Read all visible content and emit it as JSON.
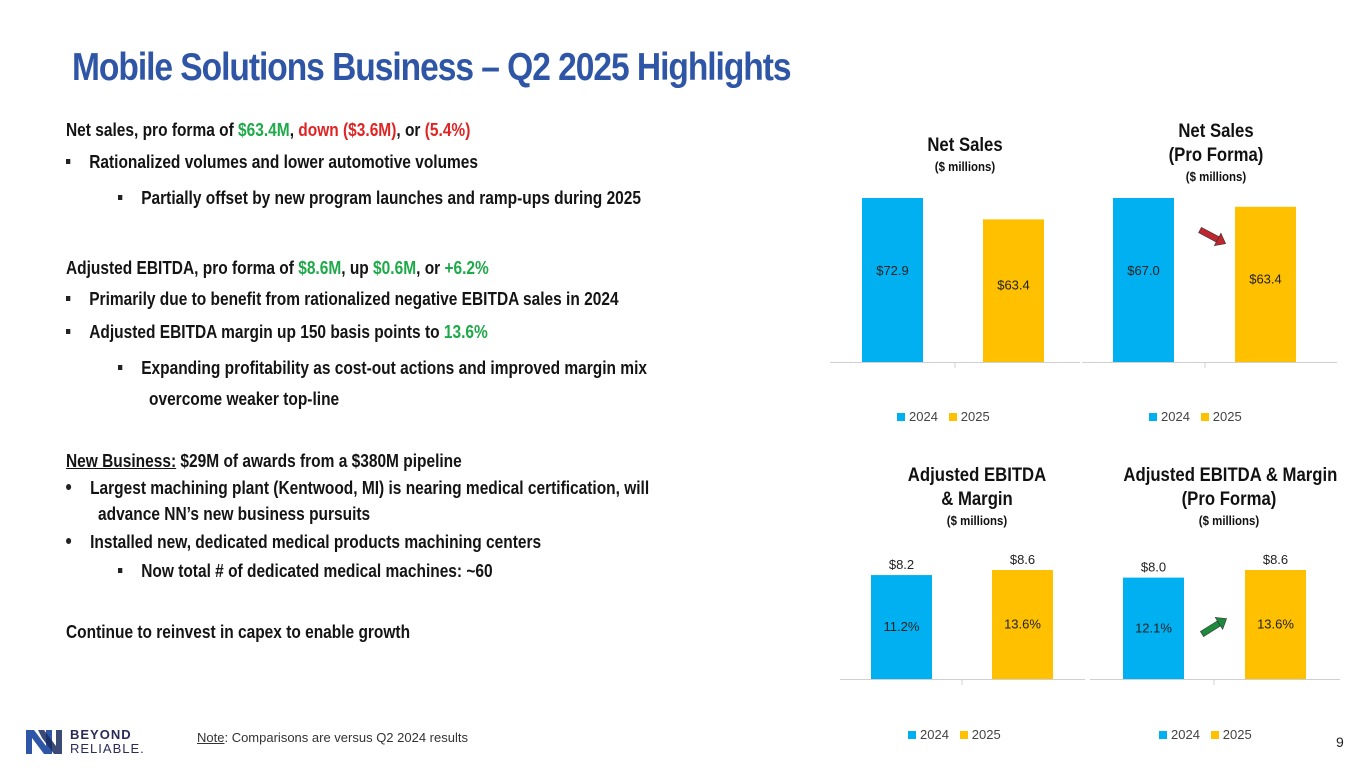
{
  "title": "Mobile Solutions Business – Q2 2025 Highlights",
  "bullets": {
    "net_sales": {
      "label": "Net sales, pro forma",
      "of": " of ",
      "value": "$63.4M",
      "comma1": ", ",
      "down": "down ($3.6M)",
      "or": ", or ",
      "pct": "(5.4%)"
    },
    "ns_b1": "Rationalized volumes and lower automotive volumes",
    "ns_b1a": "Partially offset by new program launches and ramp-ups during 2025",
    "ebitda": {
      "label": "Adjusted EBITDA, pro forma",
      "of": " of ",
      "value": "$8.6M",
      "up_prefix": ",  up ",
      "up": "$0.6M",
      "or": ", or ",
      "pct": "+6.2%"
    },
    "eb_b1": "Primarily due to benefit from rationalized negative EBITDA sales in 2024",
    "eb_b2_prefix": "Adjusted EBITDA margin up 150 basis points to ",
    "eb_b2_value": "13.6%",
    "eb_b2a_line1": "Expanding profitability as cost-out actions and improved margin mix",
    "eb_b2a_line2": "overcome weaker top-line",
    "nb": {
      "label": "New Business:",
      "text": "  $29M of awards from a $380M pipeline"
    },
    "nb_b1_line1": "Largest machining plant (Kentwood, MI) is nearing medical certification, will",
    "nb_b1_line2": "advance NN’s new business pursuits",
    "nb_b2": "Installed new, dedicated medical products machining centers",
    "nb_b2a": "Now total # of dedicated medical machines: ~60",
    "capex": "Continue to reinvest in capex to enable growth"
  },
  "colors": {
    "title": "#2f56a6",
    "c2024": "#00b0f0",
    "c2025": "#ffc000",
    "green": "#1faa4a",
    "red": "#e02424",
    "arrow_red": "#c0262d",
    "arrow_green": "#1e8a3c"
  },
  "chart_data": [
    {
      "type": "bar",
      "title": "Net Sales",
      "subtitle": "($ millions)",
      "categories": [
        "2024",
        "2025"
      ],
      "values": [
        72.9,
        63.4
      ],
      "labels": [
        "$72.9",
        "$63.4"
      ],
      "legend": [
        "2024",
        "2025"
      ],
      "ylim": [
        0,
        75
      ]
    },
    {
      "type": "bar",
      "title": "Net Sales",
      "title2": "(Pro Forma)",
      "subtitle": "($ millions)",
      "categories": [
        "2024",
        "2025"
      ],
      "values": [
        67.0,
        63.4
      ],
      "labels": [
        "$67.0",
        "$63.4"
      ],
      "legend": [
        "2024",
        "2025"
      ],
      "ylim": [
        0,
        75
      ],
      "trend": "down"
    },
    {
      "type": "bar",
      "title": "Adjusted EBITDA",
      "title2": "& Margin",
      "subtitle": "($ millions)",
      "categories": [
        "2024",
        "2025"
      ],
      "values": [
        8.2,
        8.6
      ],
      "labels": [
        "$8.2",
        "$8.6"
      ],
      "inner_labels": [
        "11.2%",
        "13.6%"
      ],
      "legend": [
        "2024",
        "2025"
      ],
      "ylim": [
        0,
        16
      ]
    },
    {
      "type": "bar",
      "title": "Adjusted EBITDA & Margin",
      "title2": "(Pro Forma)",
      "subtitle": "($ millions)",
      "categories": [
        "2024",
        "2025"
      ],
      "values": [
        8.0,
        8.6
      ],
      "labels": [
        "$8.0",
        "$8.6"
      ],
      "inner_labels": [
        "12.1%",
        "13.6%"
      ],
      "legend": [
        "2024",
        "2025"
      ],
      "ylim": [
        0,
        16
      ],
      "trend": "up"
    }
  ],
  "note": {
    "label": "Note",
    "text": ": Comparisons are versus Q2 2024 results"
  },
  "logo": {
    "line1": "BEYOND",
    "line2": "RELIABLE."
  },
  "page_number": "9"
}
